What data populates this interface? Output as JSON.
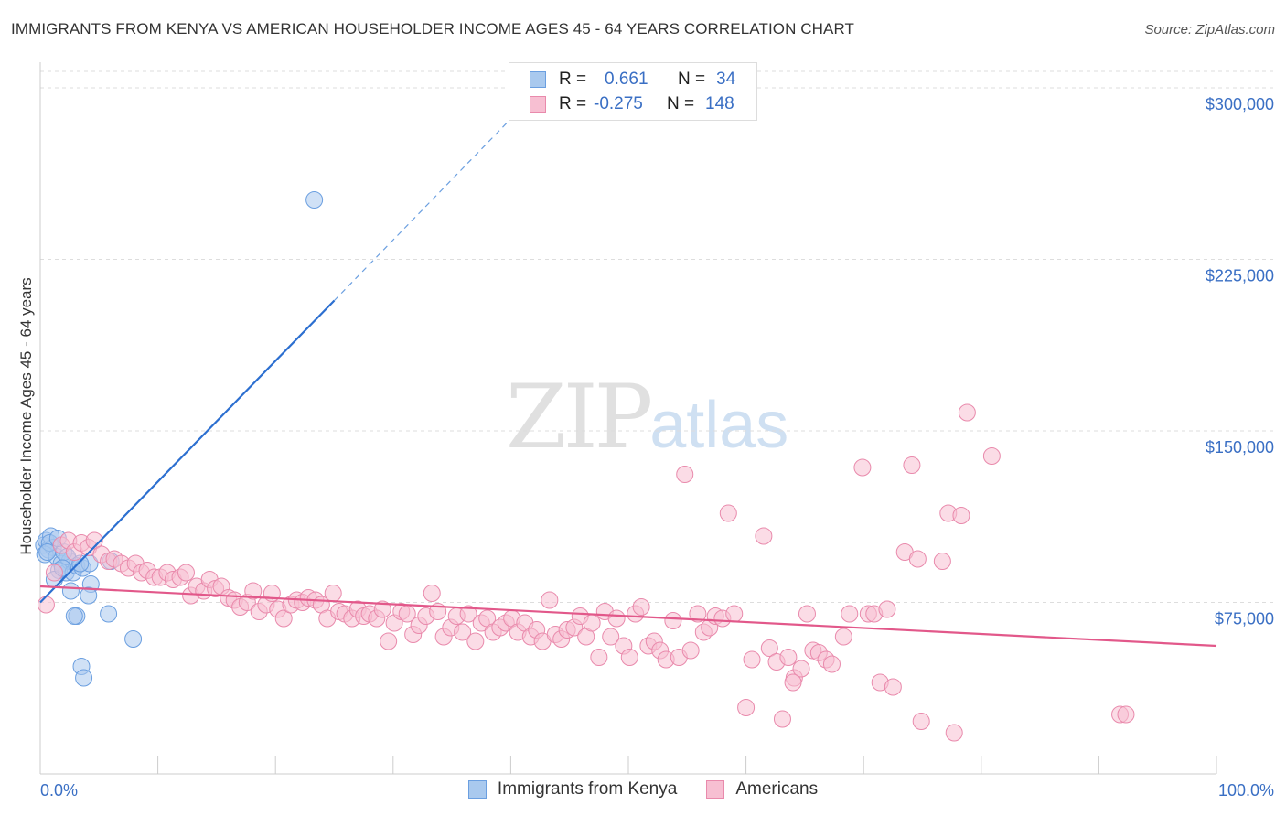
{
  "title": "IMMIGRANTS FROM KENYA VS AMERICAN HOUSEHOLDER INCOME AGES 45 - 64 YEARS CORRELATION CHART",
  "source": "Source: ZipAtlas.com",
  "watermark": {
    "zip": "ZIP",
    "atlas": "atlas"
  },
  "legend": {
    "rows": [
      {
        "r_label": "R =",
        "r_value": "0.661",
        "n_label": "N =",
        "n_value": "34",
        "color": "#a9c9ee",
        "stroke": "#6b9fe0"
      },
      {
        "r_label": "R =",
        "r_value": "-0.275",
        "n_label": "N =",
        "n_value": "148",
        "color": "#f7bfd2",
        "stroke": "#e98aac"
      }
    ]
  },
  "bottom_legend": [
    {
      "label": "Immigrants from Kenya",
      "color": "#a9c9ee",
      "stroke": "#6b9fe0"
    },
    {
      "label": "Americans",
      "color": "#f7bfd2",
      "stroke": "#e98aac"
    }
  ],
  "chart_data": {
    "type": "scatter",
    "ylabel": "Householder Income Ages 45 - 64 years",
    "xlim": [
      0,
      100
    ],
    "ylim": [
      0,
      300000
    ],
    "x_tick_labels": [
      "0.0%",
      "100.0%"
    ],
    "y_ticks": [
      {
        "value": 75000,
        "label": "$75,000"
      },
      {
        "value": 150000,
        "label": "$150,000"
      },
      {
        "value": 225000,
        "label": "$225,000"
      },
      {
        "value": 300000,
        "label": "$300,000"
      }
    ],
    "grid": true,
    "series": [
      {
        "name": "Immigrants from Kenya",
        "color": "#a9c9ee",
        "stroke": "#6b9fe0",
        "line_color": "#2c6fd0",
        "trend": {
          "x0": 0,
          "y0": 75000,
          "x1": 25,
          "y1": 207000,
          "dash_to_x": 42,
          "dash_to_y": 297000
        },
        "points": [
          [
            0.3,
            100000
          ],
          [
            0.5,
            102000
          ],
          [
            0.7,
            98000
          ],
          [
            0.9,
            104000
          ],
          [
            1.1,
            99000
          ],
          [
            0.4,
            96000
          ],
          [
            1.4,
            95000
          ],
          [
            1.8,
            92000
          ],
          [
            2.2,
            88000
          ],
          [
            2.5,
            93000
          ],
          [
            1.6,
            89000
          ],
          [
            2.8,
            88000
          ],
          [
            3.1,
            91000
          ],
          [
            2.0,
            97000
          ],
          [
            3.6,
            90000
          ],
          [
            4.2,
            92000
          ],
          [
            1.2,
            85000
          ],
          [
            2.6,
            80000
          ],
          [
            4.3,
            83000
          ],
          [
            4.1,
            78000
          ],
          [
            3.1,
            69000
          ],
          [
            2.9,
            69000
          ],
          [
            5.8,
            70000
          ],
          [
            7.9,
            59000
          ],
          [
            3.5,
            47000
          ],
          [
            3.7,
            42000
          ],
          [
            23.3,
            251000
          ],
          [
            0.8,
            101000
          ],
          [
            1.5,
            103000
          ],
          [
            0.6,
            97000
          ],
          [
            2.3,
            95000
          ],
          [
            3.4,
            92000
          ],
          [
            1.9,
            90000
          ],
          [
            6.0,
            93000
          ]
        ]
      },
      {
        "name": "Americans",
        "color": "#f7bfd2",
        "stroke": "#e98aac",
        "line_color": "#e2588a",
        "trend": {
          "x0": 0,
          "y0": 82000,
          "x1": 100,
          "y1": 56000
        },
        "points": [
          [
            0.5,
            74000
          ],
          [
            1.2,
            88000
          ],
          [
            1.8,
            100000
          ],
          [
            2.4,
            102000
          ],
          [
            2.9,
            97000
          ],
          [
            3.5,
            101000
          ],
          [
            4.1,
            99000
          ],
          [
            4.6,
            102000
          ],
          [
            5.2,
            96000
          ],
          [
            5.8,
            93000
          ],
          [
            6.3,
            94000
          ],
          [
            6.9,
            92000
          ],
          [
            7.5,
            90000
          ],
          [
            8.1,
            92000
          ],
          [
            8.6,
            88000
          ],
          [
            9.1,
            89000
          ],
          [
            9.7,
            86000
          ],
          [
            10.2,
            86000
          ],
          [
            10.8,
            88000
          ],
          [
            11.3,
            85000
          ],
          [
            11.9,
            86000
          ],
          [
            12.4,
            88000
          ],
          [
            12.8,
            78000
          ],
          [
            13.3,
            82000
          ],
          [
            13.9,
            80000
          ],
          [
            14.4,
            85000
          ],
          [
            14.9,
            81000
          ],
          [
            15.4,
            82000
          ],
          [
            16.0,
            77000
          ],
          [
            16.5,
            76000
          ],
          [
            17.0,
            73000
          ],
          [
            17.6,
            75000
          ],
          [
            18.1,
            80000
          ],
          [
            18.6,
            71000
          ],
          [
            19.2,
            74000
          ],
          [
            19.7,
            79000
          ],
          [
            20.2,
            72000
          ],
          [
            20.7,
            68000
          ],
          [
            21.3,
            74000
          ],
          [
            21.8,
            76000
          ],
          [
            22.3,
            75000
          ],
          [
            22.8,
            77000
          ],
          [
            23.4,
            76000
          ],
          [
            23.9,
            74000
          ],
          [
            24.4,
            68000
          ],
          [
            24.9,
            79000
          ],
          [
            25.4,
            71000
          ],
          [
            25.9,
            70000
          ],
          [
            26.5,
            68000
          ],
          [
            27.0,
            72000
          ],
          [
            27.5,
            69000
          ],
          [
            28.0,
            70000
          ],
          [
            28.6,
            68000
          ],
          [
            29.1,
            72000
          ],
          [
            29.6,
            58000
          ],
          [
            30.1,
            66000
          ],
          [
            30.7,
            71000
          ],
          [
            31.2,
            70000
          ],
          [
            31.7,
            61000
          ],
          [
            32.2,
            65000
          ],
          [
            32.8,
            69000
          ],
          [
            33.3,
            79000
          ],
          [
            33.8,
            71000
          ],
          [
            34.3,
            60000
          ],
          [
            34.9,
            64000
          ],
          [
            35.4,
            69000
          ],
          [
            35.9,
            62000
          ],
          [
            36.4,
            70000
          ],
          [
            37.0,
            58000
          ],
          [
            37.5,
            66000
          ],
          [
            38.0,
            68000
          ],
          [
            38.5,
            62000
          ],
          [
            39.1,
            64000
          ],
          [
            39.6,
            66000
          ],
          [
            40.1,
            68000
          ],
          [
            40.6,
            62000
          ],
          [
            41.2,
            66000
          ],
          [
            41.7,
            60000
          ],
          [
            42.2,
            63000
          ],
          [
            42.7,
            58000
          ],
          [
            43.3,
            76000
          ],
          [
            43.8,
            61000
          ],
          [
            44.3,
            59000
          ],
          [
            44.8,
            63000
          ],
          [
            45.4,
            64000
          ],
          [
            45.9,
            69000
          ],
          [
            46.4,
            60000
          ],
          [
            46.9,
            66000
          ],
          [
            47.5,
            51000
          ],
          [
            48.0,
            71000
          ],
          [
            48.5,
            60000
          ],
          [
            49.0,
            68000
          ],
          [
            49.6,
            56000
          ],
          [
            50.1,
            51000
          ],
          [
            50.6,
            70000
          ],
          [
            51.1,
            73000
          ],
          [
            51.7,
            56000
          ],
          [
            52.2,
            58000
          ],
          [
            52.7,
            54000
          ],
          [
            53.2,
            50000
          ],
          [
            53.8,
            67000
          ],
          [
            54.3,
            51000
          ],
          [
            54.8,
            131000
          ],
          [
            55.3,
            54000
          ],
          [
            55.9,
            70000
          ],
          [
            56.4,
            62000
          ],
          [
            56.9,
            64000
          ],
          [
            57.4,
            69000
          ],
          [
            58.0,
            68000
          ],
          [
            58.5,
            114000
          ],
          [
            59.0,
            70000
          ],
          [
            60.0,
            29000
          ],
          [
            60.5,
            50000
          ],
          [
            61.5,
            104000
          ],
          [
            62.0,
            55000
          ],
          [
            62.6,
            49000
          ],
          [
            63.1,
            24000
          ],
          [
            63.6,
            51000
          ],
          [
            64.1,
            42000
          ],
          [
            64.7,
            46000
          ],
          [
            65.2,
            70000
          ],
          [
            65.7,
            54000
          ],
          [
            66.2,
            53000
          ],
          [
            66.8,
            50000
          ],
          [
            67.3,
            48000
          ],
          [
            68.3,
            60000
          ],
          [
            68.8,
            70000
          ],
          [
            69.9,
            134000
          ],
          [
            70.4,
            70000
          ],
          [
            70.9,
            70000
          ],
          [
            71.4,
            40000
          ],
          [
            72.0,
            72000
          ],
          [
            72.5,
            38000
          ],
          [
            73.5,
            97000
          ],
          [
            74.1,
            135000
          ],
          [
            74.6,
            94000
          ],
          [
            74.9,
            23000
          ],
          [
            76.7,
            93000
          ],
          [
            77.2,
            114000
          ],
          [
            77.7,
            18000
          ],
          [
            78.3,
            113000
          ],
          [
            78.8,
            158000
          ],
          [
            80.9,
            139000
          ],
          [
            91.8,
            26000
          ],
          [
            92.3,
            26000
          ],
          [
            64.0,
            40000
          ]
        ]
      }
    ]
  }
}
